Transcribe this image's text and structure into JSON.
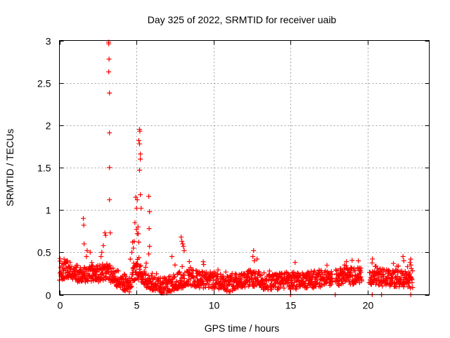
{
  "chart_data": {
    "type": "scatter",
    "title": "Day 325 of 2022, SRMTID for receiver uaib",
    "xlabel": "GPS time / hours",
    "ylabel": "SRMTID / TECUs",
    "xlim": [
      0,
      24
    ],
    "ylim": [
      0,
      3
    ],
    "xticks": [
      "0",
      "5",
      "10",
      "15",
      "20"
    ],
    "xtick_values": [
      0,
      5,
      10,
      15,
      20
    ],
    "yticks": [
      "0",
      "0.5",
      "1",
      "1.5",
      "2",
      "2.5",
      "3"
    ],
    "ytick_values": [
      0,
      0.5,
      1,
      1.5,
      2,
      2.5,
      3
    ],
    "grid": true,
    "marker": "+",
    "color": "#ff0000",
    "data_gaps_hours": [
      [
        17.7,
        17.9
      ],
      [
        19.6,
        20.1
      ]
    ],
    "base_level": [
      [
        0.0,
        0.27
      ],
      [
        0.5,
        0.3
      ],
      [
        1.0,
        0.25
      ],
      [
        1.5,
        0.24
      ],
      [
        2.0,
        0.26
      ],
      [
        2.5,
        0.25
      ],
      [
        3.0,
        0.28
      ],
      [
        3.5,
        0.22
      ],
      [
        4.0,
        0.16
      ],
      [
        4.5,
        0.12
      ],
      [
        5.0,
        0.3
      ],
      [
        5.5,
        0.2
      ],
      [
        6.0,
        0.13
      ],
      [
        6.5,
        0.1
      ],
      [
        7.0,
        0.11
      ],
      [
        7.5,
        0.16
      ],
      [
        8.0,
        0.18
      ],
      [
        8.5,
        0.2
      ],
      [
        9.0,
        0.18
      ],
      [
        9.5,
        0.17
      ],
      [
        10.0,
        0.17
      ],
      [
        10.5,
        0.16
      ],
      [
        11.0,
        0.13
      ],
      [
        11.5,
        0.17
      ],
      [
        12.0,
        0.18
      ],
      [
        12.5,
        0.2
      ],
      [
        13.0,
        0.17
      ],
      [
        13.5,
        0.15
      ],
      [
        14.0,
        0.15
      ],
      [
        14.5,
        0.17
      ],
      [
        15.0,
        0.16
      ],
      [
        15.5,
        0.16
      ],
      [
        16.0,
        0.17
      ],
      [
        16.5,
        0.18
      ],
      [
        17.0,
        0.19
      ],
      [
        17.5,
        0.18
      ],
      [
        18.0,
        0.2
      ],
      [
        18.5,
        0.22
      ],
      [
        19.0,
        0.22
      ],
      [
        19.5,
        0.22
      ],
      [
        20.0,
        0.2
      ],
      [
        20.5,
        0.22
      ],
      [
        21.0,
        0.2
      ],
      [
        21.5,
        0.2
      ],
      [
        22.0,
        0.19
      ],
      [
        22.5,
        0.18
      ],
      [
        22.9,
        0.17
      ]
    ],
    "spikes": [
      [
        1.55,
        0.9
      ],
      [
        1.58,
        0.82
      ],
      [
        1.6,
        0.6
      ],
      [
        1.75,
        0.45
      ],
      [
        1.8,
        0.52
      ],
      [
        2.0,
        0.5
      ],
      [
        2.1,
        0.38
      ],
      [
        2.7,
        0.45
      ],
      [
        2.75,
        0.5
      ],
      [
        2.85,
        0.58
      ],
      [
        2.95,
        0.73
      ],
      [
        3.0,
        0.7
      ],
      [
        3.2,
        2.98
      ],
      [
        3.2,
        2.96
      ],
      [
        3.22,
        2.78
      ],
      [
        3.2,
        2.63
      ],
      [
        3.25,
        2.38
      ],
      [
        3.25,
        1.91
      ],
      [
        3.25,
        1.5
      ],
      [
        3.25,
        1.12
      ],
      [
        3.3,
        0.73
      ],
      [
        4.6,
        0.42
      ],
      [
        4.7,
        0.5
      ],
      [
        4.75,
        0.62
      ],
      [
        4.8,
        0.55
      ],
      [
        4.85,
        0.63
      ],
      [
        4.9,
        0.85
      ],
      [
        4.95,
        1.15
      ],
      [
        5.0,
        1.02
      ],
      [
        5.05,
        1.12
      ],
      [
        5.0,
        0.77
      ],
      [
        5.05,
        0.72
      ],
      [
        5.1,
        0.8
      ],
      [
        5.12,
        0.72
      ],
      [
        5.15,
        0.62
      ],
      [
        5.2,
        1.95
      ],
      [
        5.22,
        1.93
      ],
      [
        5.15,
        1.82
      ],
      [
        5.2,
        1.78
      ],
      [
        5.25,
        1.66
      ],
      [
        5.25,
        1.6
      ],
      [
        5.2,
        1.47
      ],
      [
        5.25,
        1.18
      ],
      [
        5.3,
        1.02
      ],
      [
        5.8,
        1.16
      ],
      [
        5.85,
        0.98
      ],
      [
        5.82,
        0.78
      ],
      [
        5.85,
        0.57
      ],
      [
        5.8,
        0.48
      ],
      [
        7.9,
        0.68
      ],
      [
        7.95,
        0.63
      ],
      [
        8.0,
        0.6
      ],
      [
        8.05,
        0.57
      ],
      [
        8.1,
        0.52
      ],
      [
        7.3,
        0.45
      ],
      [
        7.5,
        0.35
      ],
      [
        12.6,
        0.52
      ],
      [
        12.55,
        0.45
      ],
      [
        12.65,
        0.4
      ],
      [
        22.3,
        0.45
      ],
      [
        22.35,
        0.4
      ],
      [
        22.8,
        0.42
      ],
      [
        22.75,
        0.38
      ],
      [
        22.8,
        0.35
      ],
      [
        19.4,
        0.4
      ],
      [
        18.5,
        0.35
      ],
      [
        0.3,
        0.42
      ],
      [
        0.5,
        0.4
      ]
    ],
    "zero_points": [
      15.0,
      17.9,
      20.3,
      20.9,
      22.8
    ]
  }
}
